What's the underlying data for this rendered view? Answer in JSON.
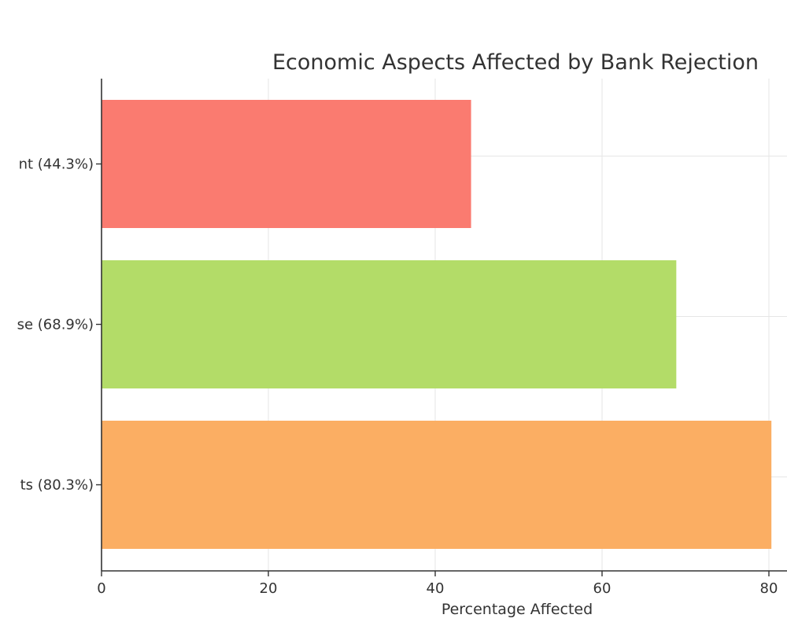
{
  "chart_data": {
    "type": "bar",
    "orientation": "horizontal",
    "title": "Economic Aspects Affected by Bank Rejection",
    "xlabel": "Percentage Affected",
    "ylabel": "",
    "xlim": [
      0,
      85
    ],
    "x_ticks": [
      0,
      20,
      40,
      60,
      80
    ],
    "grid": true,
    "categories": [
      "nt (44.3%)",
      "se (68.9%)",
      "ts (80.3%)"
    ],
    "values": [
      44.3,
      68.9,
      80.3
    ],
    "colors": [
      "#fa7b70",
      "#b3dc68",
      "#fbae63"
    ]
  }
}
